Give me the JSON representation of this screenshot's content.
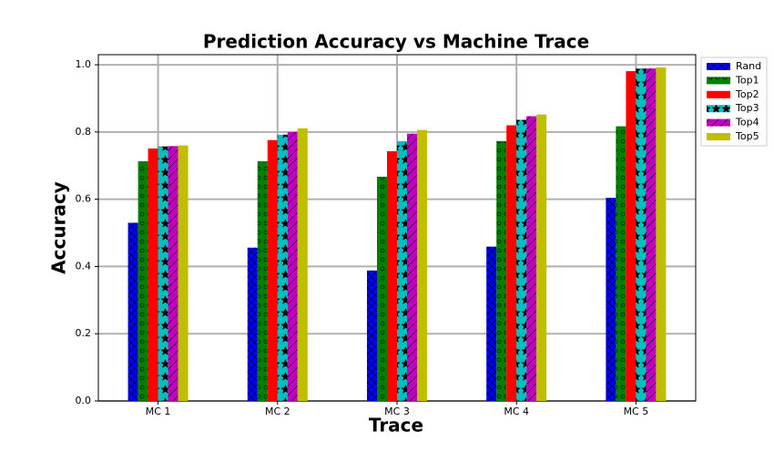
{
  "chart_data": {
    "type": "bar",
    "title": "Prediction Accuracy vs Machine Trace",
    "x_label": "Trace",
    "y_label": "Accuracy",
    "categories": [
      "MC 1",
      "MC 2",
      "MC 3",
      "MC 4",
      "MC 5"
    ],
    "series": [
      {
        "name": "Rand",
        "color": "#0000ff",
        "values": [
          0.53,
          0.456,
          0.388,
          0.459,
          0.604
        ]
      },
      {
        "name": "Top1",
        "color": "#008000",
        "values": [
          0.713,
          0.713,
          0.667,
          0.773,
          0.817
        ]
      },
      {
        "name": "Top2",
        "color": "#ff0000",
        "values": [
          0.751,
          0.776,
          0.743,
          0.82,
          0.981
        ]
      },
      {
        "name": "Top3",
        "color": "#00bfbf",
        "values": [
          0.757,
          0.792,
          0.773,
          0.836,
          0.989
        ]
      },
      {
        "name": "Top4",
        "color": "#bf00bf",
        "values": [
          0.758,
          0.8,
          0.795,
          0.847,
          0.989
        ]
      },
      {
        "name": "Top5",
        "color": "#bfbf00",
        "values": [
          0.76,
          0.811,
          0.806,
          0.852,
          0.992
        ]
      }
    ],
    "ylim": [
      0,
      1.03
    ],
    "yticks": [
      {
        "value": 0,
        "label": "0.0"
      },
      0.2,
      0.4,
      0.6,
      0.8,
      {
        "value": 1,
        "label": "1.0"
      }
    ],
    "grid": true,
    "legend": "outside upper right"
  }
}
